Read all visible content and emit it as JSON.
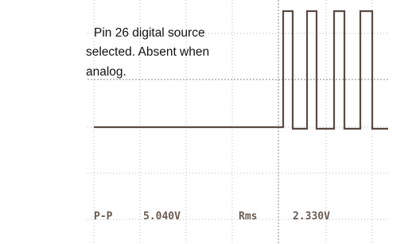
{
  "annotation": {
    "lines": [
      "Pin 26 digital source",
      "selected. Absent when",
      "analog."
    ]
  },
  "readouts": [
    {
      "label": "P-P",
      "value": "5.040V"
    },
    {
      "label": "Rms",
      "value": "2.330V"
    }
  ]
}
